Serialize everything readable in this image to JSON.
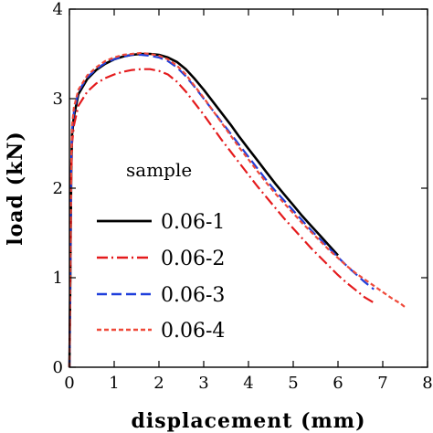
{
  "chart_data": {
    "type": "line",
    "xlabel": "displacement (mm)",
    "ylabel": "load (kN)",
    "xlim": [
      0,
      8
    ],
    "ylim": [
      0,
      4
    ],
    "x_ticks": [
      0,
      1,
      2,
      3,
      4,
      5,
      6,
      7,
      8
    ],
    "y_ticks": [
      0,
      1,
      2,
      3,
      4
    ],
    "grid": false,
    "legend": {
      "title": "sample",
      "placement": "lower-left"
    },
    "series": [
      {
        "name": "0.06-1",
        "color": "#000000",
        "dash": "solid",
        "points": [
          [
            0,
            0
          ],
          [
            0.02,
            1.0
          ],
          [
            0.04,
            2.2
          ],
          [
            0.06,
            2.6
          ],
          [
            0.1,
            2.8
          ],
          [
            0.2,
            3.05
          ],
          [
            0.4,
            3.22
          ],
          [
            0.6,
            3.32
          ],
          [
            0.8,
            3.39
          ],
          [
            1.0,
            3.44
          ],
          [
            1.2,
            3.47
          ],
          [
            1.4,
            3.49
          ],
          [
            1.6,
            3.5
          ],
          [
            1.8,
            3.5
          ],
          [
            2.0,
            3.49
          ],
          [
            2.2,
            3.46
          ],
          [
            2.4,
            3.41
          ],
          [
            2.6,
            3.33
          ],
          [
            2.8,
            3.22
          ],
          [
            3.0,
            3.1
          ],
          [
            3.2,
            2.97
          ],
          [
            3.4,
            2.84
          ],
          [
            3.6,
            2.71
          ],
          [
            3.8,
            2.57
          ],
          [
            4.0,
            2.44
          ],
          [
            4.2,
            2.31
          ],
          [
            4.4,
            2.18
          ],
          [
            4.6,
            2.05
          ],
          [
            4.8,
            1.93
          ],
          [
            5.0,
            1.81
          ],
          [
            5.2,
            1.69
          ],
          [
            5.4,
            1.58
          ],
          [
            5.6,
            1.47
          ],
          [
            5.8,
            1.36
          ],
          [
            6.0,
            1.25
          ]
        ]
      },
      {
        "name": "0.06-2",
        "color": "#e41a1c",
        "dash": "dash-dot",
        "points": [
          [
            0,
            0
          ],
          [
            0.02,
            1.0
          ],
          [
            0.04,
            2.1
          ],
          [
            0.06,
            2.5
          ],
          [
            0.1,
            2.7
          ],
          [
            0.2,
            2.92
          ],
          [
            0.4,
            3.08
          ],
          [
            0.6,
            3.17
          ],
          [
            0.8,
            3.23
          ],
          [
            1.0,
            3.27
          ],
          [
            1.2,
            3.3
          ],
          [
            1.4,
            3.32
          ],
          [
            1.6,
            3.33
          ],
          [
            1.8,
            3.33
          ],
          [
            2.0,
            3.31
          ],
          [
            2.2,
            3.27
          ],
          [
            2.4,
            3.19
          ],
          [
            2.6,
            3.08
          ],
          [
            2.8,
            2.95
          ],
          [
            3.0,
            2.82
          ],
          [
            3.2,
            2.68
          ],
          [
            3.4,
            2.54
          ],
          [
            3.6,
            2.41
          ],
          [
            3.8,
            2.28
          ],
          [
            4.0,
            2.15
          ],
          [
            4.2,
            2.02
          ],
          [
            4.4,
            1.9
          ],
          [
            4.6,
            1.78
          ],
          [
            4.8,
            1.66
          ],
          [
            5.0,
            1.55
          ],
          [
            5.2,
            1.44
          ],
          [
            5.4,
            1.33
          ],
          [
            5.6,
            1.23
          ],
          [
            5.8,
            1.13
          ],
          [
            6.0,
            1.03
          ],
          [
            6.2,
            0.94
          ],
          [
            6.4,
            0.86
          ],
          [
            6.6,
            0.78
          ],
          [
            6.8,
            0.72
          ]
        ]
      },
      {
        "name": "0.06-3",
        "color": "#1f3fdc",
        "dash": "long-dash",
        "points": [
          [
            0,
            0
          ],
          [
            0.02,
            1.1
          ],
          [
            0.04,
            2.3
          ],
          [
            0.06,
            2.65
          ],
          [
            0.1,
            2.85
          ],
          [
            0.2,
            3.08
          ],
          [
            0.4,
            3.24
          ],
          [
            0.6,
            3.33
          ],
          [
            0.8,
            3.4
          ],
          [
            1.0,
            3.44
          ],
          [
            1.2,
            3.47
          ],
          [
            1.4,
            3.49
          ],
          [
            1.6,
            3.49
          ],
          [
            1.8,
            3.48
          ],
          [
            2.0,
            3.46
          ],
          [
            2.2,
            3.42
          ],
          [
            2.4,
            3.35
          ],
          [
            2.6,
            3.25
          ],
          [
            2.8,
            3.13
          ],
          [
            3.0,
            3.0
          ],
          [
            3.2,
            2.87
          ],
          [
            3.4,
            2.74
          ],
          [
            3.6,
            2.61
          ],
          [
            3.8,
            2.48
          ],
          [
            4.0,
            2.35
          ],
          [
            4.2,
            2.22
          ],
          [
            4.4,
            2.09
          ],
          [
            4.6,
            1.97
          ],
          [
            4.8,
            1.86
          ],
          [
            5.0,
            1.75
          ],
          [
            5.2,
            1.64
          ],
          [
            5.4,
            1.53
          ],
          [
            5.6,
            1.43
          ],
          [
            5.8,
            1.33
          ],
          [
            6.0,
            1.23
          ],
          [
            6.2,
            1.13
          ],
          [
            6.4,
            1.04
          ],
          [
            6.6,
            0.95
          ],
          [
            6.8,
            0.87
          ]
        ]
      },
      {
        "name": "0.06-4",
        "color": "#ef4a3a",
        "dash": "short-dash",
        "points": [
          [
            0,
            0
          ],
          [
            0.02,
            1.1
          ],
          [
            0.04,
            2.3
          ],
          [
            0.06,
            2.7
          ],
          [
            0.1,
            2.9
          ],
          [
            0.2,
            3.1
          ],
          [
            0.4,
            3.26
          ],
          [
            0.6,
            3.35
          ],
          [
            0.8,
            3.42
          ],
          [
            1.0,
            3.46
          ],
          [
            1.2,
            3.49
          ],
          [
            1.4,
            3.5
          ],
          [
            1.6,
            3.51
          ],
          [
            1.8,
            3.5
          ],
          [
            2.0,
            3.48
          ],
          [
            2.2,
            3.44
          ],
          [
            2.4,
            3.37
          ],
          [
            2.6,
            3.27
          ],
          [
            2.8,
            3.14
          ],
          [
            3.0,
            3.01
          ],
          [
            3.2,
            2.87
          ],
          [
            3.4,
            2.73
          ],
          [
            3.6,
            2.59
          ],
          [
            3.8,
            2.45
          ],
          [
            4.0,
            2.32
          ],
          [
            4.2,
            2.19
          ],
          [
            4.4,
            2.06
          ],
          [
            4.6,
            1.94
          ],
          [
            4.8,
            1.83
          ],
          [
            5.0,
            1.72
          ],
          [
            5.2,
            1.61
          ],
          [
            5.4,
            1.51
          ],
          [
            5.6,
            1.41
          ],
          [
            5.8,
            1.31
          ],
          [
            6.0,
            1.22
          ],
          [
            6.2,
            1.13
          ],
          [
            6.4,
            1.05
          ],
          [
            6.6,
            0.98
          ],
          [
            6.8,
            0.91
          ],
          [
            7.0,
            0.84
          ],
          [
            7.2,
            0.77
          ],
          [
            7.4,
            0.71
          ],
          [
            7.5,
            0.67
          ]
        ]
      }
    ]
  }
}
